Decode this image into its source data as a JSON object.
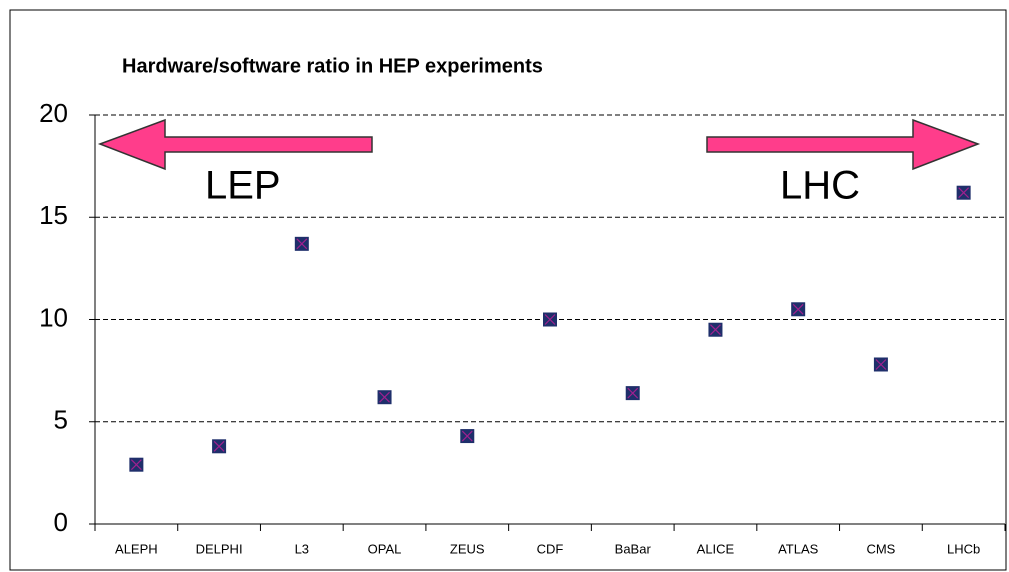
{
  "chart_data": {
    "type": "scatter",
    "title": "Hardware/software ratio in HEP experiments",
    "categories": [
      "ALEPH",
      "DELPHI",
      "L3",
      "OPAL",
      "ZEUS",
      "CDF",
      "BaBar",
      "ALICE",
      "ATLAS",
      "CMS",
      "LHCb"
    ],
    "values": [
      2.9,
      3.8,
      13.7,
      6.2,
      4.3,
      10.0,
      6.4,
      9.5,
      10.5,
      7.8,
      16.2
    ],
    "color": "#1f2f6b",
    "annotations": [
      "LEP",
      "LHC"
    ],
    "ylim": [
      0,
      20
    ],
    "yticks": [
      0,
      5,
      10,
      15,
      20
    ],
    "grid": true
  }
}
